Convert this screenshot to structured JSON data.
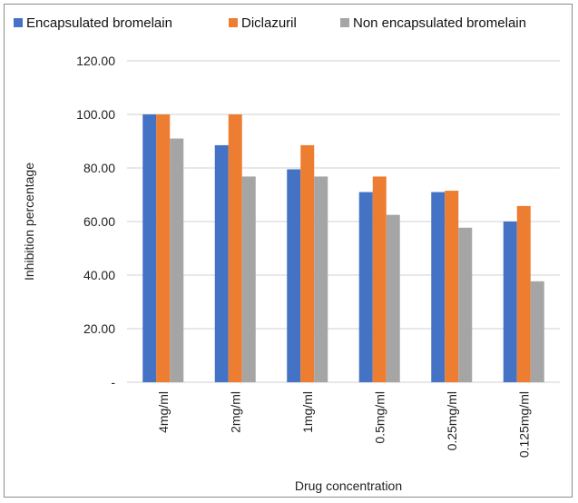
{
  "chart_data": {
    "type": "bar",
    "title": "",
    "xlabel": "Drug concentration",
    "ylabel": "Inhibition percentage",
    "categories": [
      "4mg/ml",
      "2mg/ml",
      "1mg/ml",
      "0.5mg/ml",
      "0.25mg/ml",
      "0.125mg/ml"
    ],
    "series": [
      {
        "name": "Encapsulated bromelain",
        "color": "#4472c4",
        "values": [
          100.0,
          88.5,
          79.5,
          71.0,
          71.0,
          60.0
        ]
      },
      {
        "name": "Diclazuril",
        "color": "#ed7d31",
        "values": [
          100.0,
          100.0,
          88.5,
          76.8,
          71.5,
          65.8
        ]
      },
      {
        "name": "Non encapsulated bromelain",
        "color": "#a5a5a5",
        "values": [
          91.0,
          76.8,
          76.8,
          62.5,
          57.7,
          37.7
        ]
      }
    ],
    "ylim": [
      0,
      120
    ],
    "yticks": [
      0,
      20,
      40,
      60,
      80,
      100,
      120
    ],
    "ytick_labels": [
      "-",
      "20.00",
      "40.00",
      "60.00",
      "80.00",
      "100.00",
      "120.00"
    ],
    "grid": true,
    "legend_position": "top"
  }
}
